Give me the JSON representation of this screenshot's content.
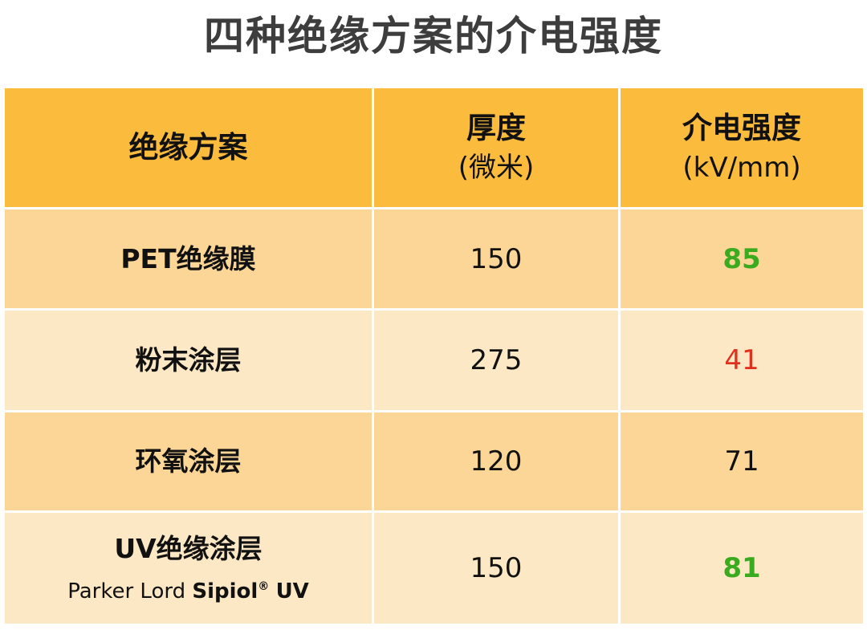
{
  "title": "四种绝缘方案的介电强度",
  "colors": {
    "header_bg": "#fbbc3e",
    "row_dark": "#fbd697",
    "row_light": "#fde8c5",
    "highlight_good": "#3aaa1e",
    "highlight_bad": "#e0301e"
  },
  "table": {
    "headers": [
      {
        "main": "绝缘方案",
        "sub": ""
      },
      {
        "main": "厚度",
        "sub": "(微米)"
      },
      {
        "main": "介电强度",
        "sub": "(kV/mm)"
      }
    ],
    "rows": [
      {
        "name": "PET绝缘膜",
        "thickness": "150",
        "strength": "85",
        "strength_color": "#3aaa1e",
        "strength_bold": true
      },
      {
        "name": "粉末涂层",
        "thickness": "275",
        "strength": "41",
        "strength_color": "#e0301e",
        "strength_bold": false
      },
      {
        "name": "环氧涂层",
        "thickness": "120",
        "strength": "71",
        "strength_color": "#111111",
        "strength_bold": false
      },
      {
        "name": "UV绝缘涂层",
        "brand_plain": "Parker Lord",
        "brand_strong": "Sipiol",
        "brand_reg": "®",
        "brand_suffix": "UV",
        "thickness": "150",
        "strength": "81",
        "strength_color": "#3aaa1e",
        "strength_bold": true
      }
    ]
  }
}
